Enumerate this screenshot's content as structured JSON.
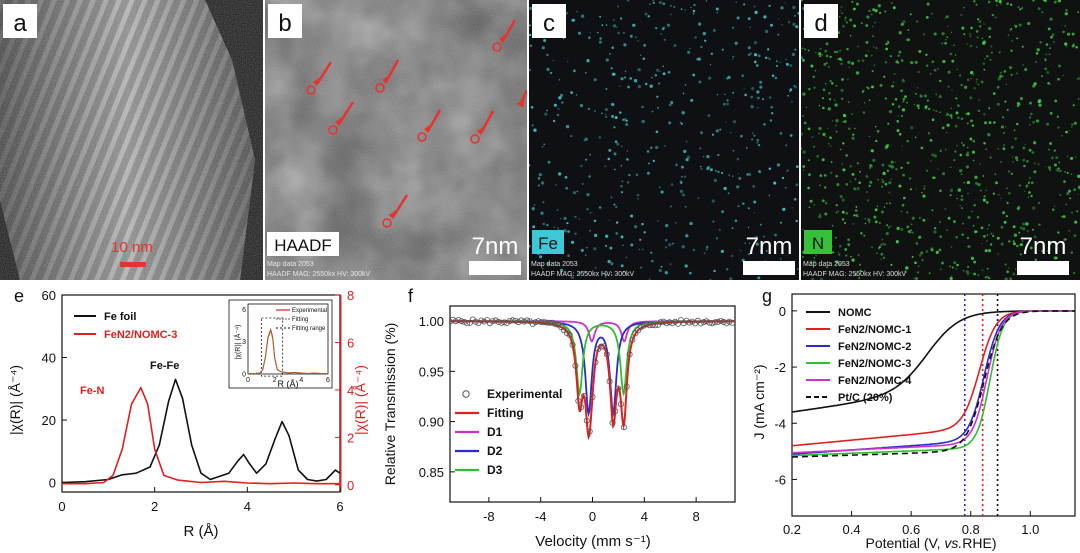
{
  "micrographs": {
    "a": {
      "letter": "a",
      "scale_bar": "10 nm"
    },
    "b": {
      "letter": "b",
      "tag": "HAADF",
      "scale": "7nm",
      "info_line1": "Map data 2053",
      "info_line2": "HAADF  MAG: 2550kx  HV: 300kV"
    },
    "c": {
      "letter": "c",
      "tag": "Fe",
      "scale": "7nm",
      "info_line1": "Map data 2053",
      "info_line2": "HAADF  MAG: 2550kx  HV: 300kV",
      "dot_color": "#3fc9c9",
      "tag_color": "#3cc8d8"
    },
    "d": {
      "letter": "d",
      "tag": "N",
      "scale": "7nm",
      "info_line1": "Map data 2053",
      "info_line2": "HAADF  MAG: 2550kx  HV: 300kV",
      "dot_color": "#3fd447",
      "tag_color": "#35c23a"
    }
  },
  "colors": {
    "black": "#111111",
    "red": "#e02020",
    "blue": "#2b2bd0",
    "green": "#2fbf2f",
    "magenta": "#cc33cc"
  },
  "chart_data": [
    {
      "id": "e",
      "type": "line",
      "label": "e",
      "xlabel": "R (Å)",
      "ylabel_left": "|χ(R)| (Å⁻⁴)",
      "ylabel_right": "|χ(R)| (Å⁻⁴)",
      "xlim": [
        0,
        6
      ],
      "ylim_left": [
        -3,
        60
      ],
      "ylim_right": [
        -0.3,
        8
      ],
      "xticks": [
        "0",
        "2",
        "4",
        "6"
      ],
      "yticks_left": [
        "0",
        "20",
        "40",
        "60"
      ],
      "yticks_right": [
        "0",
        "2",
        "4",
        "6",
        "8"
      ],
      "legend": [
        "Fe foil",
        "FeN2/NOMC-3"
      ],
      "annotations": [
        "Fe-N",
        "Fe-Fe"
      ],
      "series": [
        {
          "name": "Fe foil",
          "axis": "left",
          "color": "#111111",
          "x": [
            0,
            0.5,
            1.0,
            1.3,
            1.6,
            1.9,
            2.1,
            2.3,
            2.45,
            2.6,
            2.8,
            3.0,
            3.2,
            3.4,
            3.6,
            3.8,
            3.92,
            4.05,
            4.2,
            4.4,
            4.6,
            4.75,
            4.9,
            5.1,
            5.3,
            5.5,
            5.7,
            5.9,
            6.0
          ],
          "y": [
            0,
            0.3,
            1.0,
            2.5,
            3.0,
            5,
            12,
            26,
            33,
            27,
            12,
            3,
            1,
            2,
            3,
            7,
            9,
            6,
            3,
            6,
            14,
            19.5,
            15,
            4,
            1,
            0.5,
            1,
            4,
            3
          ]
        },
        {
          "name": "FeN2/NOMC-3",
          "axis": "right",
          "color": "#e02020",
          "x": [
            0,
            0.5,
            0.9,
            1.1,
            1.3,
            1.5,
            1.7,
            1.85,
            2.0,
            2.2,
            2.5,
            3.0,
            3.5,
            4.0,
            4.5,
            5.0,
            5.5,
            6.0
          ],
          "y": [
            0.05,
            0.05,
            0.1,
            0.4,
            1.5,
            3.4,
            4.1,
            3.4,
            1.5,
            0.4,
            0.2,
            0.1,
            0.15,
            0.08,
            0.05,
            0.08,
            0.05,
            0.05
          ]
        }
      ],
      "inset": {
        "xlabel": "R (Å)",
        "ylabel": "|χ(R)| (Å⁻⁴)",
        "xticks": [
          "0",
          "2",
          "4",
          "6"
        ],
        "yticks": [
          "0",
          "3",
          "6"
        ],
        "legend": [
          "Experimental",
          "Fitting",
          "Fitting range"
        ],
        "peak_x": 1.7,
        "peak_y": 4.1,
        "fit_range": [
          1.0,
          2.6
        ]
      }
    },
    {
      "id": "f",
      "type": "line",
      "label": "f",
      "xlabel": "Velocity (mm s⁻¹)",
      "ylabel": "Relative Transmission (%)",
      "xlim": [
        -11,
        11
      ],
      "ylim": [
        0.82,
        1.015
      ],
      "xticks": [
        "-8",
        "-4",
        "0",
        "4",
        "8"
      ],
      "yticks": [
        "0.85",
        "0.90",
        "0.95",
        "1.00"
      ],
      "legend": [
        "Experimental",
        "Fitting",
        "D1",
        "D2",
        "D3"
      ],
      "series": [
        {
          "name": "D1",
          "color": "#cc33cc",
          "peaks": [
            {
              "center": -0.05,
              "depth": 0.02,
              "width": 0.55
            },
            {
              "center": 2.45,
              "depth": 0.02,
              "width": 0.55
            }
          ]
        },
        {
          "name": "D2",
          "color": "#2b2bd0",
          "peaks": [
            {
              "center": -0.3,
              "depth": 0.09,
              "width": 0.6
            },
            {
              "center": 1.6,
              "depth": 0.09,
              "width": 0.6
            }
          ]
        },
        {
          "name": "D3",
          "color": "#2fbf2f",
          "peaks": [
            {
              "center": -1.0,
              "depth": 0.072,
              "width": 0.6
            },
            {
              "center": 2.4,
              "depth": 0.072,
              "width": 0.6
            }
          ]
        },
        {
          "name": "Fitting",
          "color": "#e02020"
        },
        {
          "name": "Experimental",
          "color": "#555555"
        }
      ]
    },
    {
      "id": "g",
      "type": "line",
      "label": "g",
      "xlabel_parts": [
        "Potential (V, ",
        "vs.",
        "RHE)"
      ],
      "ylabel": "J (mA cm⁻²)",
      "xlim": [
        0.2,
        1.15
      ],
      "ylim": [
        -7.3,
        0.6
      ],
      "xticks": [
        "0.2",
        "0.4",
        "0.6",
        "0.8",
        "1.0"
      ],
      "yticks": [
        "0",
        "-2",
        "-4",
        "-6"
      ],
      "vlines": [
        {
          "x": 0.78,
          "color": "#2b2bd0"
        },
        {
          "x": 0.84,
          "color": "#e02020"
        },
        {
          "x": 0.89,
          "color": "#111111"
        }
      ],
      "legend": [
        "NOMC",
        "FeN2/NOMC-1",
        "FeN2/NOMC-2",
        "FeN2/NOMC-3",
        "FeN2/NOMC-4",
        "Pt/C (20%)"
      ],
      "series": [
        {
          "name": "NOMC",
          "color": "#111111",
          "dash": false,
          "jl": -3.6,
          "drift": 0.9,
          "e_half": 0.66,
          "k": 0.055
        },
        {
          "name": "FeN2/NOMC-1",
          "color": "#e02020",
          "dash": false,
          "jl": -4.8,
          "drift": 0.6,
          "e_half": 0.83,
          "k": 0.028
        },
        {
          "name": "FeN2/NOMC-2",
          "color": "#2b2bd0",
          "dash": false,
          "jl": -5.1,
          "drift": 0.45,
          "e_half": 0.845,
          "k": 0.026
        },
        {
          "name": "FeN2/NOMC-3",
          "color": "#2fbf2f",
          "dash": false,
          "jl": -5.15,
          "drift": 0.25,
          "e_half": 0.865,
          "k": 0.022
        },
        {
          "name": "FeN2/NOMC-4",
          "color": "#cc33cc",
          "dash": false,
          "jl": -5.05,
          "drift": 0.3,
          "e_half": 0.855,
          "k": 0.024
        },
        {
          "name": "Pt/C (20%)",
          "color": "#111111",
          "dash": true,
          "jl": -5.2,
          "drift": 0.2,
          "e_half": 0.845,
          "k": 0.03
        }
      ]
    }
  ]
}
